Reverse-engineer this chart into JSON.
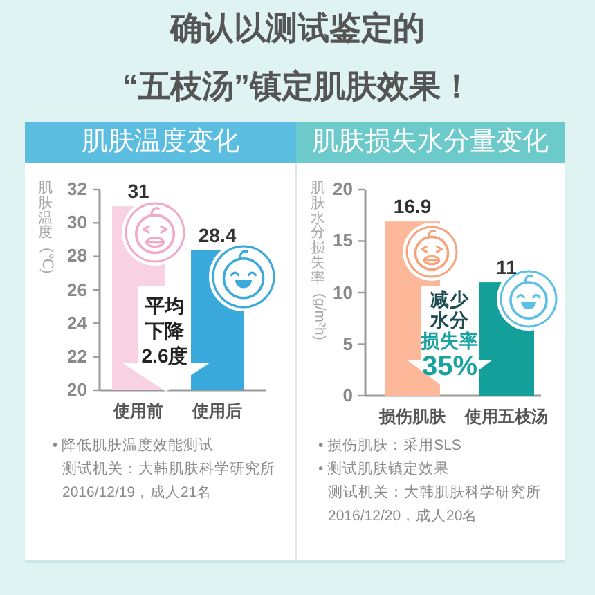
{
  "chart_data": [
    {
      "type": "other",
      "title": "确认以测试鉴定的“五枝汤”镇定肌肤效果！"
    },
    {
      "type": "bar",
      "title": "肌肤温度变化",
      "ylabel": "肌肤温度 (℃)",
      "categories": [
        "使用前",
        "使用后"
      ],
      "values": [
        31,
        28.4
      ],
      "colors": [
        "#f8d2e3",
        "#3aa9db"
      ],
      "ylim": [
        20,
        32
      ],
      "yticks": [
        20,
        22,
        24,
        26,
        28,
        30,
        32
      ],
      "data_labels": true,
      "annotations": [
        "平均下降2.6度",
        "• 降低肌肤温度效能测试",
        "测试机关：大韩肌肤科学研究所",
        "2016/12/19，成人21名"
      ]
    },
    {
      "type": "bar",
      "title": "肌肤损失水分量变化",
      "ylabel": "肌肤水分损失率 (g/m²h)",
      "categories": [
        "损伤肌肤",
        "使用五枝汤"
      ],
      "values": [
        16.9,
        11
      ],
      "colors": [
        "#fcb898",
        "#13a09b"
      ],
      "ylim": [
        0,
        20
      ],
      "yticks": [
        0,
        5,
        10,
        15,
        20
      ],
      "data_labels": true,
      "annotations": [
        "减少水分损失率35%",
        "• 损伤肌肤：采用SLS",
        "• 测试肌肤镇定效果",
        "测试机关：大韩肌肤科学研究所",
        "2016/12/20，成人20名"
      ]
    }
  ]
}
